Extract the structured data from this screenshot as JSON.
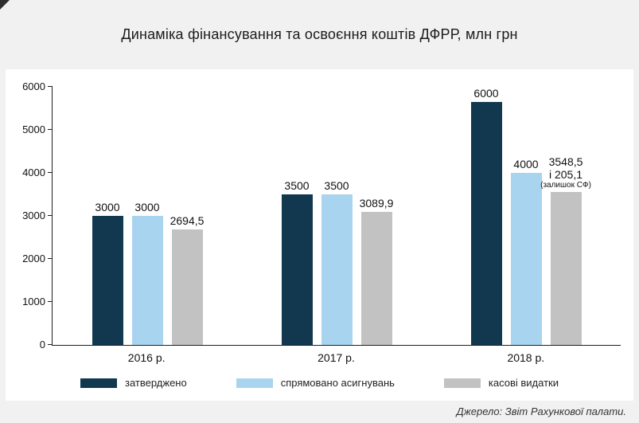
{
  "chart_data": {
    "type": "bar",
    "title": "Динаміка фінансування та освоєння коштів ДФРР, млн грн",
    "categories": [
      "2016 р.",
      "2017 р.",
      "2018 р."
    ],
    "series": [
      {
        "name": "затверджено",
        "color": "#12384f",
        "values": [
          3000,
          3500,
          6000
        ],
        "labels": [
          "3000",
          "3500",
          "6000"
        ]
      },
      {
        "name": "спрямовано асигнувань",
        "color": "#a9d4ef",
        "values": [
          3000,
          3500,
          4000
        ],
        "labels": [
          "3000",
          "3500",
          "4000"
        ]
      },
      {
        "name": "касові видатки",
        "color": "#c2c2c2",
        "values": [
          2694.5,
          3089.9,
          3548.5
        ],
        "labels": [
          "2694,5",
          "3089,9",
          "3548,5\nі 205,1"
        ],
        "notes": [
          "",
          "",
          "(залишок СФ)"
        ]
      }
    ],
    "ylim": [
      0,
      6000
    ],
    "yticks": [
      {
        "value": 0,
        "label": "0"
      },
      {
        "value": 1000,
        "label": "1000"
      },
      {
        "value": 2000,
        "label": "2000"
      },
      {
        "value": 3000,
        "label": "3000"
      },
      {
        "value": 4000,
        "label": "4000"
      },
      {
        "value": 5000,
        "label": "5000"
      },
      {
        "value": 6000,
        "label": "6000"
      }
    ],
    "grid": false,
    "legend_position": "bottom",
    "source": "Джерело: Звіт Рахункової палати."
  }
}
